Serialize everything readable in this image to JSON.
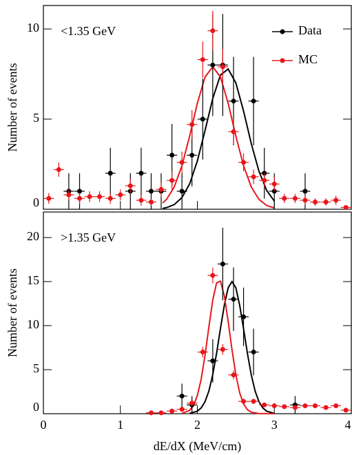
{
  "chart_data": [
    {
      "type": "scatter",
      "title": "<1.35 GeV",
      "ylabel": "Number of events",
      "xlim": [
        0,
        4
      ],
      "xticks": [
        0,
        1,
        2,
        3,
        4
      ],
      "ylim": [
        0,
        11.3
      ],
      "yticks": [
        0,
        5,
        10
      ],
      "legend": "upper right",
      "series": [
        {
          "name": "Data",
          "color": "#000000",
          "xerror": 0.067,
          "x": [
            0.33,
            0.47,
            0.87,
            1.13,
            1.27,
            1.4,
            1.53,
            1.67,
            1.8,
            1.93,
            2.07,
            2.2,
            2.33,
            2.47,
            2.73,
            2.87,
            3.0,
            3.4
          ],
          "values": [
            1,
            1,
            2,
            1,
            2,
            1,
            1,
            3,
            1,
            3,
            5,
            8,
            8,
            6,
            6,
            2,
            1,
            1
          ],
          "errors": [
            1,
            1,
            1.41,
            1,
            1.41,
            1,
            1,
            1.73,
            1,
            1.73,
            2.24,
            2.83,
            2.83,
            2.45,
            2.45,
            1.41,
            1,
            1
          ]
        },
        {
          "name": "MC",
          "color": "#e8161b",
          "xerror": 0.067,
          "x": [
            0.07,
            0.2,
            0.33,
            0.47,
            0.6,
            0.73,
            0.87,
            1.0,
            1.13,
            1.27,
            1.4,
            1.53,
            1.67,
            1.8,
            1.93,
            2.07,
            2.2,
            2.33,
            2.47,
            2.6,
            2.73,
            2.87,
            3.0,
            3.13,
            3.27,
            3.4,
            3.53,
            3.67,
            3.8,
            3.93
          ],
          "values": [
            0.6,
            2.2,
            0.8,
            0.6,
            0.7,
            0.7,
            0.6,
            0.8,
            1.3,
            0.5,
            0.4,
            1.1,
            1.6,
            2.6,
            4.7,
            8.3,
            9.9,
            7.9,
            4.3,
            2.6,
            1.8,
            1.6,
            1.4,
            0.6,
            0.6,
            0.5,
            0.4,
            0.4,
            0.5,
            0.1
          ],
          "errors": [
            0.3,
            0.4,
            0.3,
            0.3,
            0.3,
            0.3,
            0.3,
            0.3,
            0.4,
            0.3,
            0.2,
            0.4,
            0.5,
            0.6,
            0.8,
            1,
            1.1,
            1,
            0.7,
            0.5,
            0.4,
            0.4,
            0.4,
            0.25,
            0.25,
            0.25,
            0.2,
            0.2,
            0.25,
            0.1
          ]
        }
      ],
      "fits": [
        {
          "color": "#000000",
          "x": [
            1.55,
            1.6,
            1.7,
            1.8,
            1.9,
            2.0,
            2.1,
            2.2,
            2.3,
            2.4,
            2.5,
            2.6,
            2.7,
            2.8,
            2.9,
            3.0
          ],
          "values": [
            0.05,
            0.09,
            0.26,
            0.65,
            1.41,
            2.68,
            4.37,
            6.14,
            7.44,
            7.78,
            7.01,
            5.45,
            3.65,
            2.11,
            1.05,
            0.45
          ]
        },
        {
          "color": "#e8161b",
          "x": [
            1.55,
            1.6,
            1.7,
            1.8,
            1.9,
            2.0,
            2.1,
            2.2,
            2.3,
            2.4,
            2.5,
            2.6,
            2.7,
            2.8,
            2.9,
            3.0
          ],
          "values": [
            0.35,
            0.55,
            1.24,
            2.42,
            4.06,
            5.88,
            7.34,
            7.9,
            7.34,
            5.88,
            4.06,
            2.42,
            1.24,
            0.55,
            0.21,
            0.07
          ]
        }
      ]
    },
    {
      "type": "scatter",
      "title": ">1.35 GeV",
      "ylabel": "Number of events",
      "xlabel": "dE/dX (MeV/cm)",
      "xlim": [
        0,
        4
      ],
      "xticks": [
        0,
        1,
        2,
        3,
        4
      ],
      "ylim": [
        0,
        22.9
      ],
      "yticks": [
        0,
        5,
        10,
        15,
        20
      ],
      "series": [
        {
          "name": "Data",
          "color": "#000000",
          "xerror": 0.067,
          "x": [
            1.8,
            1.93,
            2.2,
            2.33,
            2.47,
            2.6,
            2.73,
            3.27
          ],
          "values": [
            2,
            1,
            6,
            17,
            13,
            11,
            7,
            1
          ],
          "errors": [
            1.41,
            1,
            2.45,
            4.12,
            3.61,
            3.32,
            2.65,
            1
          ]
        },
        {
          "name": "MC",
          "color": "#e8161b",
          "xerror": 0.067,
          "x": [
            1.4,
            1.53,
            1.67,
            1.8,
            1.93,
            2.07,
            2.2,
            2.33,
            2.47,
            2.6,
            2.73,
            2.87,
            3.0,
            3.13,
            3.27,
            3.4,
            3.53,
            3.67,
            3.8,
            3.93
          ],
          "values": [
            0.1,
            0.1,
            0.3,
            0.5,
            1.2,
            7,
            15.7,
            7.3,
            4.4,
            1.4,
            1.4,
            1,
            0.9,
            0.8,
            0.7,
            0.9,
            0.9,
            0.7,
            0.9,
            0.4
          ],
          "errors": [
            0.05,
            0.05,
            0.1,
            0.15,
            0.3,
            0.6,
            0.9,
            0.6,
            0.5,
            0.3,
            0.3,
            0.2,
            0.2,
            0.2,
            0.2,
            0.2,
            0.2,
            0.2,
            0.2,
            0.15
          ]
        }
      ],
      "fits": [
        {
          "color": "#000000",
          "x": [
            1.9,
            2.0,
            2.05,
            2.1,
            2.15,
            2.2,
            2.25,
            2.3,
            2.35,
            2.4,
            2.45,
            2.5,
            2.55,
            2.6,
            2.65,
            2.7,
            2.75,
            2.8,
            2.85,
            2.9,
            3.0
          ],
          "values": [
            0.04,
            0.29,
            0.66,
            1.37,
            2.58,
            4.43,
            6.87,
            9.66,
            12.3,
            14.3,
            15,
            14.3,
            12.3,
            9.66,
            6.87,
            4.43,
            2.58,
            1.37,
            0.66,
            0.29,
            0.04
          ]
        },
        {
          "color": "#e8161b",
          "x": [
            1.8,
            1.9,
            1.95,
            2.0,
            2.05,
            2.1,
            2.15,
            2.2,
            2.25,
            2.3,
            2.35,
            2.4,
            2.45,
            2.5,
            2.55,
            2.6,
            2.65,
            2.7,
            2.8,
            3.0
          ],
          "values": [
            0.04,
            0.38,
            0.94,
            2.06,
            3.94,
            6.65,
            9.88,
            12.9,
            14.85,
            15.05,
            13.4,
            10.5,
            7.27,
            4.42,
            2.37,
            1.12,
            0.46,
            0.17,
            0.02,
            0
          ]
        }
      ]
    }
  ]
}
